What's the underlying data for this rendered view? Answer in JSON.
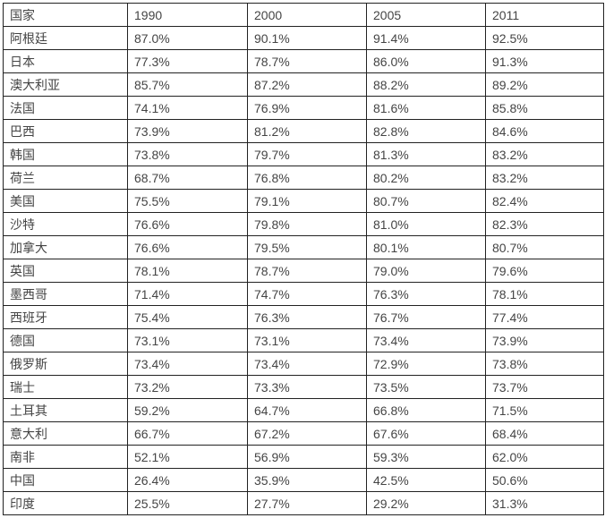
{
  "table": {
    "headers": [
      "国家",
      "1990",
      "2000",
      "2005",
      "2011"
    ],
    "rows": [
      [
        "阿根廷",
        "87.0%",
        "90.1%",
        "91.4%",
        "92.5%"
      ],
      [
        "日本",
        "77.3%",
        "78.7%",
        "86.0%",
        "91.3%"
      ],
      [
        "澳大利亚",
        "85.7%",
        "87.2%",
        "88.2%",
        "89.2%"
      ],
      [
        "法国",
        "74.1%",
        "76.9%",
        "81.6%",
        "85.8%"
      ],
      [
        "巴西",
        "73.9%",
        "81.2%",
        "82.8%",
        "84.6%"
      ],
      [
        "韩国",
        "73.8%",
        "79.7%",
        "81.3%",
        "83.2%"
      ],
      [
        "荷兰",
        "68.7%",
        "76.8%",
        "80.2%",
        "83.2%"
      ],
      [
        "美国",
        "75.5%",
        "79.1%",
        "80.7%",
        "82.4%"
      ],
      [
        "沙特",
        "76.6%",
        "79.8%",
        "81.0%",
        "82.3%"
      ],
      [
        "加拿大",
        "76.6%",
        "79.5%",
        "80.1%",
        "80.7%"
      ],
      [
        "英国",
        "78.1%",
        "78.7%",
        "79.0%",
        "79.6%"
      ],
      [
        "墨西哥",
        "71.4%",
        "74.7%",
        "76.3%",
        "78.1%"
      ],
      [
        "西班牙",
        "75.4%",
        "76.3%",
        "76.7%",
        "77.4%"
      ],
      [
        "德国",
        "73.1%",
        "73.1%",
        "73.4%",
        "73.9%"
      ],
      [
        "俄罗斯",
        "73.4%",
        "73.4%",
        "72.9%",
        "73.8%"
      ],
      [
        "瑞士",
        "73.2%",
        "73.3%",
        "73.5%",
        "73.7%"
      ],
      [
        "土耳其",
        "59.2%",
        "64.7%",
        "66.8%",
        "71.5%"
      ],
      [
        "意大利",
        "66.7%",
        "67.2%",
        "67.6%",
        "68.4%"
      ],
      [
        "南非",
        "52.1%",
        "56.9%",
        "59.3%",
        "62.0%"
      ],
      [
        "中国",
        "26.4%",
        "35.9%",
        "42.5%",
        "50.6%"
      ],
      [
        "印度",
        "25.5%",
        "27.7%",
        "29.2%",
        "31.3%"
      ]
    ]
  }
}
